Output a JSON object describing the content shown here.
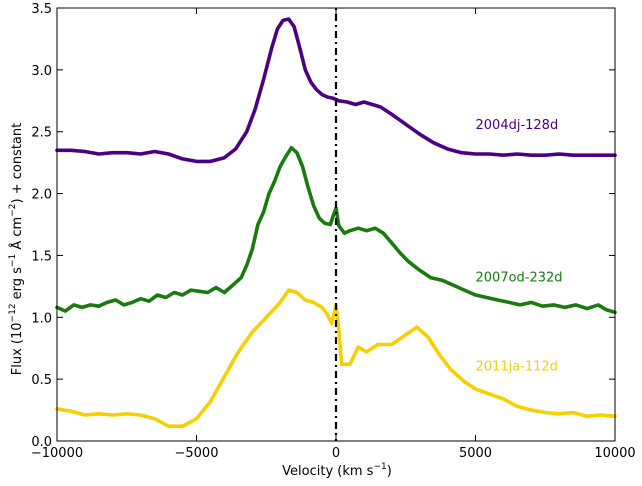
{
  "chart_data": {
    "type": "line",
    "xlabel": "Velocity (km s",
    "xlabel_sup": "−1",
    "xlabel_end": ")",
    "ylabel": "Flux (10",
    "ylabel_sup1": "−12",
    "ylabel_mid1": " erg s",
    "ylabel_sup2": "−1",
    "ylabel_mid2": "  Å cm",
    "ylabel_sup3": "−2",
    "ylabel_end": ") + constant",
    "xlim": [
      -10000,
      10000
    ],
    "ylim": [
      0.0,
      3.5
    ],
    "xticks": [
      -10000,
      -5000,
      0,
      5000,
      10000
    ],
    "xtick_labels": [
      "−10000",
      "−5000",
      "0",
      "5000",
      "10000"
    ],
    "yticks": [
      0.0,
      0.5,
      1.0,
      1.5,
      2.0,
      2.5,
      3.0,
      3.5
    ],
    "ytick_labels": [
      "0.0",
      "0.5",
      "1.0",
      "1.5",
      "2.0",
      "2.5",
      "3.0",
      "3.5"
    ],
    "vline_x": 0,
    "series": [
      {
        "name": "2004dj-128d",
        "color": "#4b0082",
        "label_pos": [
          5000,
          2.52
        ],
        "points": [
          [
            -10000,
            2.35
          ],
          [
            -9500,
            2.35
          ],
          [
            -9000,
            2.34
          ],
          [
            -8500,
            2.32
          ],
          [
            -8000,
            2.33
          ],
          [
            -7500,
            2.33
          ],
          [
            -7000,
            2.32
          ],
          [
            -6500,
            2.34
          ],
          [
            -6000,
            2.32
          ],
          [
            -5500,
            2.28
          ],
          [
            -5000,
            2.26
          ],
          [
            -4500,
            2.26
          ],
          [
            -4000,
            2.29
          ],
          [
            -3600,
            2.36
          ],
          [
            -3200,
            2.5
          ],
          [
            -2900,
            2.68
          ],
          [
            -2600,
            2.92
          ],
          [
            -2300,
            3.18
          ],
          [
            -2100,
            3.33
          ],
          [
            -1900,
            3.4
          ],
          [
            -1700,
            3.41
          ],
          [
            -1500,
            3.35
          ],
          [
            -1300,
            3.18
          ],
          [
            -1100,
            3.0
          ],
          [
            -900,
            2.9
          ],
          [
            -700,
            2.84
          ],
          [
            -500,
            2.8
          ],
          [
            -300,
            2.78
          ],
          [
            -100,
            2.77
          ],
          [
            100,
            2.75
          ],
          [
            400,
            2.74
          ],
          [
            700,
            2.72
          ],
          [
            1000,
            2.74
          ],
          [
            1300,
            2.72
          ],
          [
            1600,
            2.7
          ],
          [
            2000,
            2.64
          ],
          [
            2500,
            2.56
          ],
          [
            3000,
            2.48
          ],
          [
            3500,
            2.41
          ],
          [
            4000,
            2.36
          ],
          [
            4500,
            2.33
          ],
          [
            5000,
            2.32
          ],
          [
            5500,
            2.32
          ],
          [
            6000,
            2.31
          ],
          [
            6500,
            2.32
          ],
          [
            7000,
            2.31
          ],
          [
            7500,
            2.31
          ],
          [
            8000,
            2.32
          ],
          [
            8500,
            2.31
          ],
          [
            9000,
            2.31
          ],
          [
            9500,
            2.31
          ],
          [
            10000,
            2.31
          ]
        ]
      },
      {
        "name": "2007od-232d",
        "color": "#1a7a10",
        "label_pos": [
          5000,
          1.29
        ],
        "points": [
          [
            -10000,
            1.08
          ],
          [
            -9700,
            1.05
          ],
          [
            -9400,
            1.1
          ],
          [
            -9100,
            1.08
          ],
          [
            -8800,
            1.1
          ],
          [
            -8500,
            1.09
          ],
          [
            -8200,
            1.12
          ],
          [
            -7900,
            1.14
          ],
          [
            -7600,
            1.1
          ],
          [
            -7300,
            1.12
          ],
          [
            -7000,
            1.15
          ],
          [
            -6700,
            1.13
          ],
          [
            -6400,
            1.18
          ],
          [
            -6100,
            1.16
          ],
          [
            -5800,
            1.2
          ],
          [
            -5500,
            1.18
          ],
          [
            -5200,
            1.22
          ],
          [
            -4900,
            1.21
          ],
          [
            -4600,
            1.2
          ],
          [
            -4300,
            1.24
          ],
          [
            -4000,
            1.2
          ],
          [
            -3700,
            1.26
          ],
          [
            -3400,
            1.32
          ],
          [
            -3200,
            1.42
          ],
          [
            -3000,
            1.55
          ],
          [
            -2800,
            1.75
          ],
          [
            -2600,
            1.85
          ],
          [
            -2400,
            2.0
          ],
          [
            -2200,
            2.1
          ],
          [
            -2000,
            2.22
          ],
          [
            -1800,
            2.3
          ],
          [
            -1600,
            2.37
          ],
          [
            -1400,
            2.33
          ],
          [
            -1200,
            2.22
          ],
          [
            -1000,
            2.05
          ],
          [
            -800,
            1.9
          ],
          [
            -600,
            1.8
          ],
          [
            -400,
            1.76
          ],
          [
            -200,
            1.75
          ],
          [
            -100,
            1.82
          ],
          [
            0,
            1.88
          ],
          [
            100,
            1.74
          ],
          [
            300,
            1.68
          ],
          [
            500,
            1.7
          ],
          [
            800,
            1.72
          ],
          [
            1100,
            1.7
          ],
          [
            1400,
            1.72
          ],
          [
            1700,
            1.68
          ],
          [
            2000,
            1.6
          ],
          [
            2300,
            1.52
          ],
          [
            2600,
            1.45
          ],
          [
            3000,
            1.38
          ],
          [
            3400,
            1.32
          ],
          [
            3800,
            1.3
          ],
          [
            4200,
            1.26
          ],
          [
            4600,
            1.22
          ],
          [
            5000,
            1.18
          ],
          [
            5400,
            1.16
          ],
          [
            5800,
            1.14
          ],
          [
            6200,
            1.12
          ],
          [
            6600,
            1.1
          ],
          [
            7000,
            1.12
          ],
          [
            7400,
            1.09
          ],
          [
            7800,
            1.1
          ],
          [
            8200,
            1.08
          ],
          [
            8600,
            1.1
          ],
          [
            9000,
            1.07
          ],
          [
            9400,
            1.1
          ],
          [
            9700,
            1.06
          ],
          [
            10000,
            1.04
          ]
        ]
      },
      {
        "name": "2011ja-112d",
        "color": "#f5d000",
        "label_pos": [
          5000,
          0.57
        ],
        "points": [
          [
            -10000,
            0.26
          ],
          [
            -9500,
            0.24
          ],
          [
            -9000,
            0.21
          ],
          [
            -8500,
            0.22
          ],
          [
            -8000,
            0.21
          ],
          [
            -7500,
            0.22
          ],
          [
            -7000,
            0.21
          ],
          [
            -6500,
            0.18
          ],
          [
            -6000,
            0.12
          ],
          [
            -5500,
            0.12
          ],
          [
            -5000,
            0.18
          ],
          [
            -4500,
            0.32
          ],
          [
            -4000,
            0.52
          ],
          [
            -3500,
            0.72
          ],
          [
            -3000,
            0.88
          ],
          [
            -2500,
            1.0
          ],
          [
            -2000,
            1.12
          ],
          [
            -1700,
            1.22
          ],
          [
            -1400,
            1.2
          ],
          [
            -1100,
            1.14
          ],
          [
            -800,
            1.12
          ],
          [
            -500,
            1.08
          ],
          [
            -300,
            1.02
          ],
          [
            -150,
            0.95
          ],
          [
            0,
            1.1
          ],
          [
            100,
            0.9
          ],
          [
            200,
            0.62
          ],
          [
            500,
            0.62
          ],
          [
            800,
            0.76
          ],
          [
            1100,
            0.72
          ],
          [
            1500,
            0.78
          ],
          [
            2000,
            0.78
          ],
          [
            2500,
            0.86
          ],
          [
            2900,
            0.92
          ],
          [
            3300,
            0.84
          ],
          [
            3700,
            0.7
          ],
          [
            4100,
            0.58
          ],
          [
            4600,
            0.48
          ],
          [
            5000,
            0.42
          ],
          [
            5500,
            0.38
          ],
          [
            6000,
            0.34
          ],
          [
            6500,
            0.28
          ],
          [
            7000,
            0.25
          ],
          [
            7500,
            0.23
          ],
          [
            8000,
            0.22
          ],
          [
            8500,
            0.23
          ],
          [
            9000,
            0.2
          ],
          [
            9500,
            0.21
          ],
          [
            10000,
            0.2
          ]
        ]
      }
    ]
  }
}
